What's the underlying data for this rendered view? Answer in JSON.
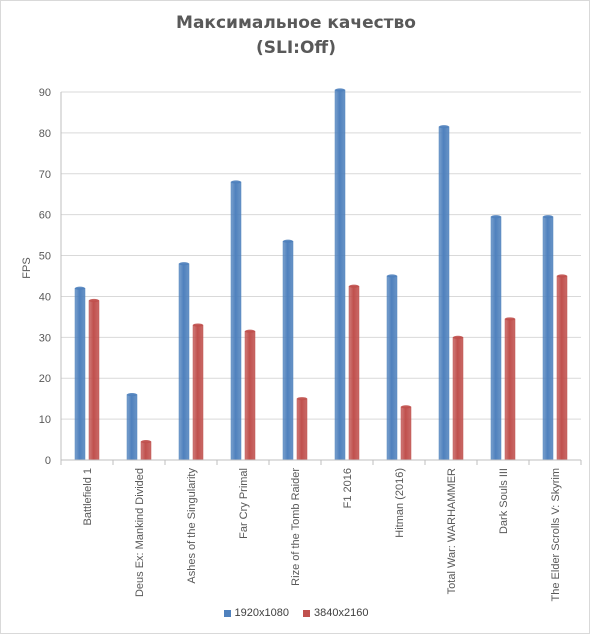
{
  "chart_data": {
    "type": "bar",
    "title": "Максимальное качество",
    "subtitle": "(SLI:Off)",
    "ylabel": "FPS",
    "xlabel": "",
    "ylim": [
      0,
      90
    ],
    "yticks": [
      0,
      10,
      20,
      30,
      40,
      50,
      60,
      70,
      80,
      90
    ],
    "grid": true,
    "legend_position": "bottom",
    "categories": [
      "Battlefield 1",
      "Deus Ex: Mankind Divided",
      "Ashes of the Singularity",
      "Far Cry Primal",
      "Rize of the Tomb Raider",
      "F1 2016",
      "Hitman (2016)",
      "Total War: WARHAMMER",
      "Dark Souls III",
      "The Elder Scrolls V: Skyrim"
    ],
    "series": [
      {
        "name": "1920x1080",
        "color": "#4f81bd",
        "values": [
          42,
          16,
          48,
          68,
          53.5,
          90.5,
          45,
          81.5,
          59.5,
          59.5
        ]
      },
      {
        "name": "3840x2160",
        "color": "#c0504d",
        "values": [
          39,
          4.5,
          33,
          31.5,
          15,
          42.5,
          13,
          30,
          34.5,
          45
        ]
      }
    ]
  }
}
